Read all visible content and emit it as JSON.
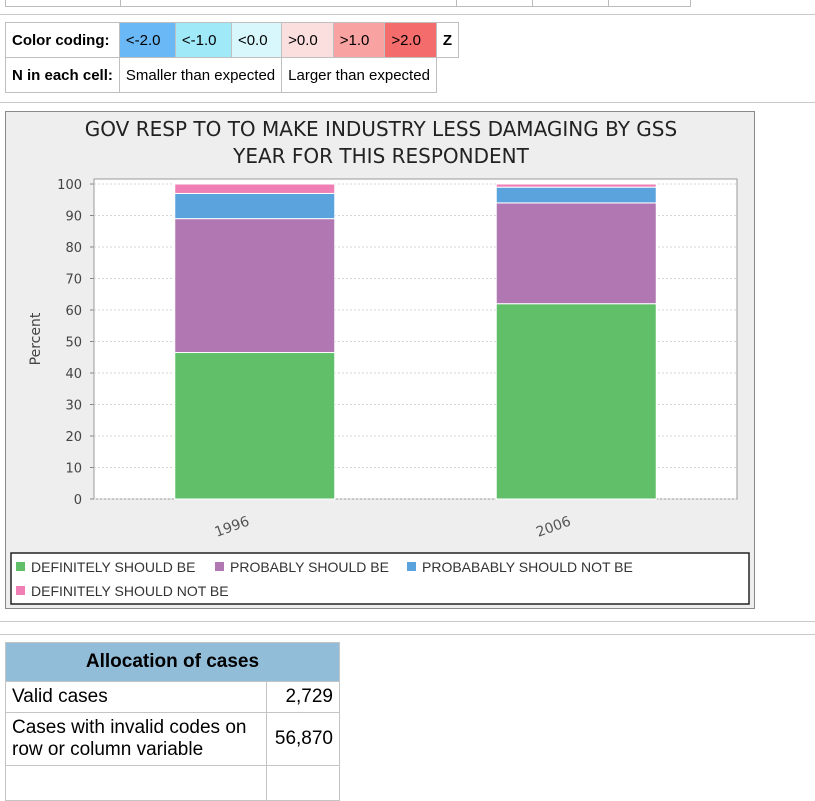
{
  "color_legend": {
    "label": "Color coding:",
    "items": [
      "<-2.0",
      "<-1.0",
      "<0.0",
      ">0.0",
      ">1.0",
      ">2.0"
    ],
    "z_label": "Z",
    "n_label": "N in each cell:",
    "smaller": "Smaller than expected",
    "larger": "Larger than expected"
  },
  "chart_data": {
    "type": "bar",
    "stacked": true,
    "title_lines": [
      "GOV RESP TO TO MAKE INDUSTRY LESS DAMAGING BY GSS",
      "YEAR FOR THIS RESPONDENT"
    ],
    "ylabel": "Percent",
    "xlabel": "",
    "ylim": [
      0,
      100
    ],
    "yticks": [
      0,
      10,
      20,
      30,
      40,
      50,
      60,
      70,
      80,
      90,
      100
    ],
    "categories": [
      "1996",
      "2006"
    ],
    "series": [
      {
        "name": "DEFINITELY SHOULD BE",
        "color": "#62bf69",
        "values": [
          46.5,
          62
        ]
      },
      {
        "name": "PROBABLY SHOULD BE",
        "color": "#b077b3",
        "values": [
          42.5,
          32
        ]
      },
      {
        "name": "PROBABABLY SHOULD NOT BE",
        "color": "#5ba3dc",
        "values": [
          8,
          5
        ]
      },
      {
        "name": "DEFINITELY SHOULD NOT BE",
        "color": "#f07fb5",
        "values": [
          3,
          1
        ]
      }
    ],
    "grid": true,
    "legend_position": "bottom"
  },
  "allocation": {
    "header": "Allocation of cases",
    "rows": [
      {
        "label": "Valid cases",
        "value": "2,729"
      },
      {
        "label": "Cases with invalid codes on row or column variable",
        "value": "56,870"
      }
    ]
  }
}
